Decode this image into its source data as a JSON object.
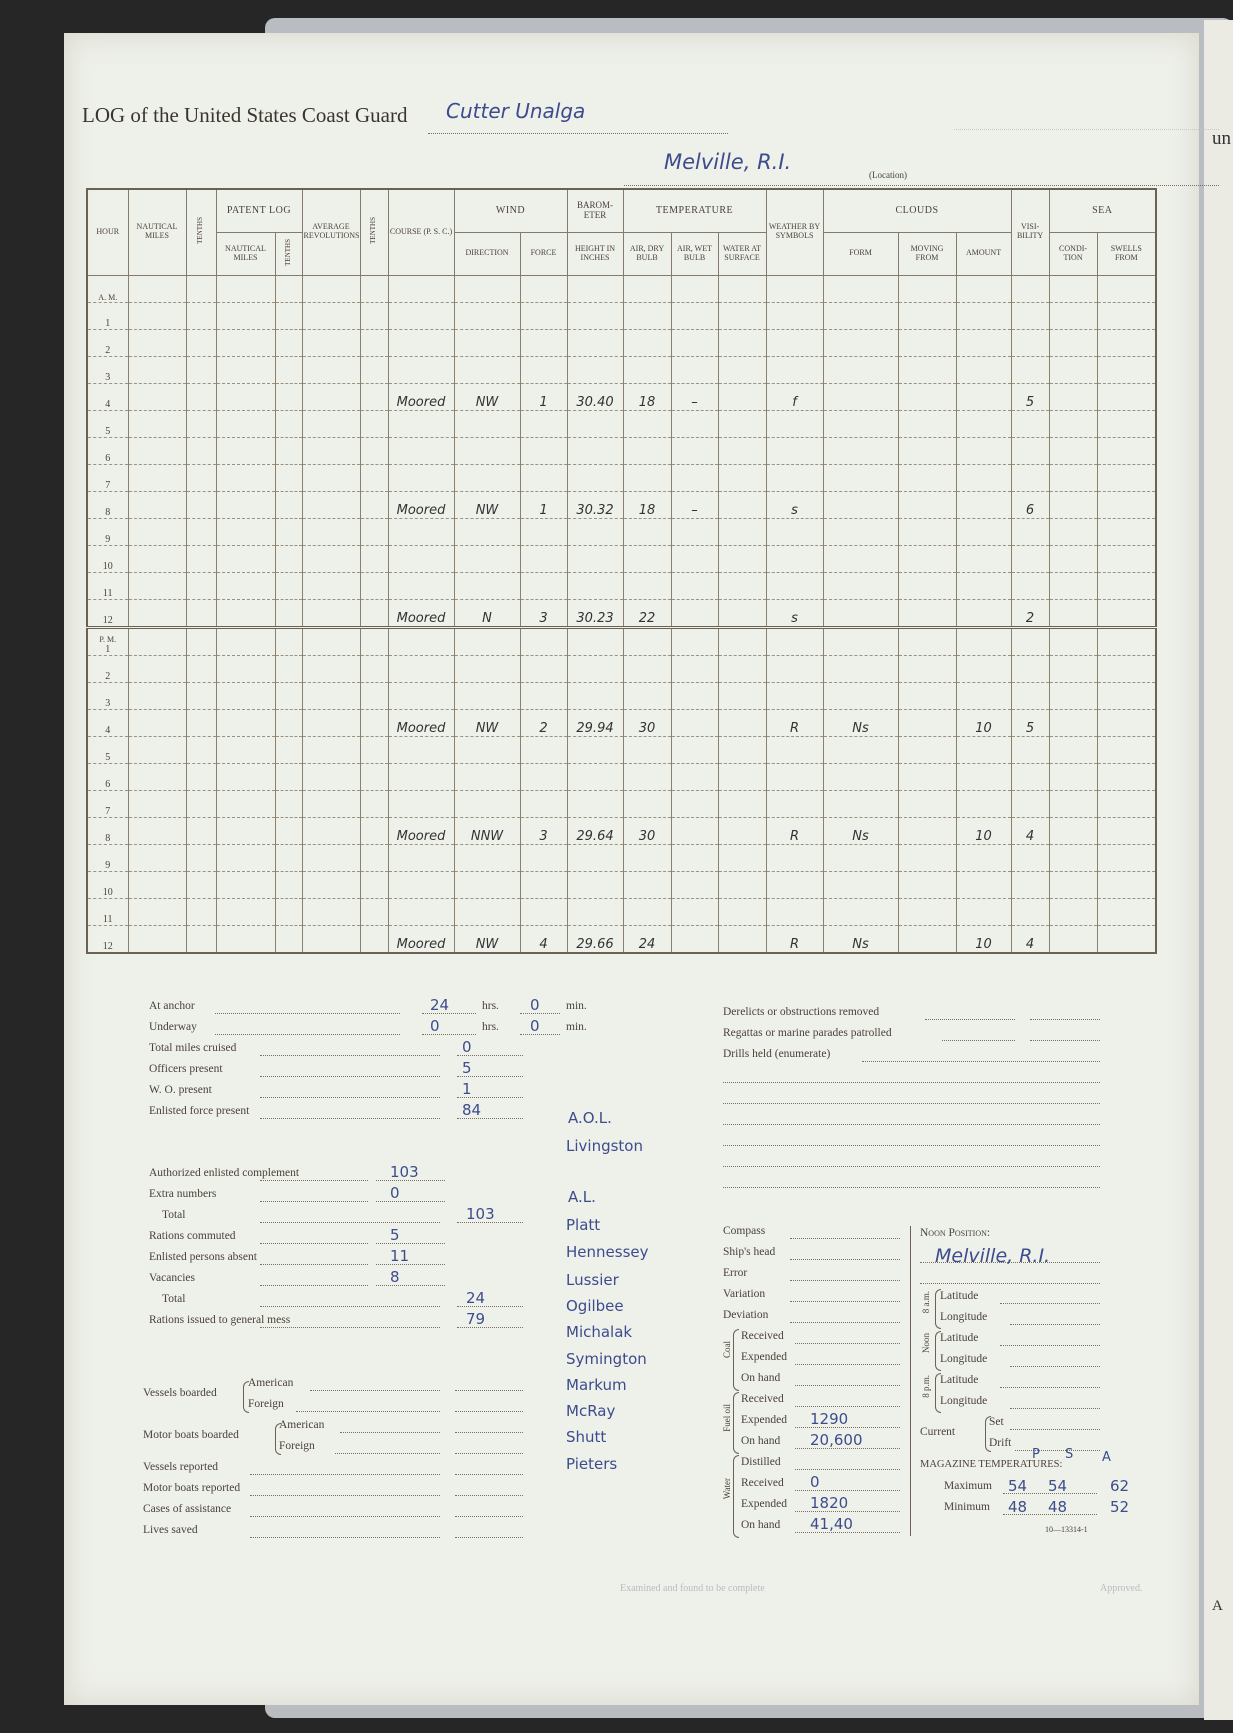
{
  "header": {
    "title": "LOG of the United States Coast Guard",
    "vessel": "Cutter Unalga",
    "location": "Melville, R.I.",
    "location_caption": "(Location)"
  },
  "table": {
    "headers": {
      "hour": "Hour",
      "nautical_miles": "Nautical Miles",
      "tenths": "Tenths",
      "patent_log": "Patent Log",
      "pl_nautical_miles": "Nautical Miles",
      "pl_tenths": "Tenths",
      "avg_revolutions": "Average Revolutions",
      "tenths2": "Tenths",
      "course": "Course (P. S. C.)",
      "wind": "Wind",
      "direction": "Direction",
      "force": "Force",
      "barometer": "Barom-eter",
      "height_in_inches": "Height in Inches",
      "temperature": "Temperature",
      "air_dry_bulb": "Air, Dry Bulb",
      "air_wet_bulb": "Air, Wet Bulb",
      "water_at_surface": "Water at Surface",
      "weather": "Weather by Symbols",
      "clouds": "Clouds",
      "form": "Form",
      "moving_from": "Moving From",
      "amount": "Amount",
      "visibility": "Visi-bility",
      "sea": "Sea",
      "condition": "Condi-tion",
      "swells_from": "Swells From"
    },
    "am_label": "A. M.",
    "pm_label": "P. M.",
    "am_rows": [
      {
        "hour": "1"
      },
      {
        "hour": "2"
      },
      {
        "hour": "3"
      },
      {
        "hour": "4",
        "course": "Moored",
        "direction": "NW",
        "force": "1",
        "barometer": "30.40",
        "dry": "18",
        "wet": "–",
        "weather": "f",
        "visibility": "5"
      },
      {
        "hour": "5"
      },
      {
        "hour": "6"
      },
      {
        "hour": "7"
      },
      {
        "hour": "8",
        "course": "Moored",
        "direction": "NW",
        "force": "1",
        "barometer": "30.32",
        "dry": "18",
        "wet": "–",
        "weather": "s",
        "visibility": "6"
      },
      {
        "hour": "9"
      },
      {
        "hour": "10"
      },
      {
        "hour": "11"
      },
      {
        "hour": "12",
        "course": "Moored",
        "direction": "N",
        "force": "3",
        "barometer": "30.23",
        "dry": "22",
        "weather": "s",
        "visibility": "2"
      }
    ],
    "pm_rows": [
      {
        "hour": "1"
      },
      {
        "hour": "2"
      },
      {
        "hour": "3"
      },
      {
        "hour": "4",
        "course": "Moored",
        "direction": "NW",
        "force": "2",
        "barometer": "29.94",
        "dry": "30",
        "weather": "R",
        "form": "Ns",
        "amount": "10",
        "visibility": "5"
      },
      {
        "hour": "5"
      },
      {
        "hour": "6"
      },
      {
        "hour": "7"
      },
      {
        "hour": "8",
        "course": "Moored",
        "direction": "NNW",
        "force": "3",
        "barometer": "29.64",
        "dry": "30",
        "weather": "R",
        "form": "Ns",
        "amount": "10",
        "visibility": "4"
      },
      {
        "hour": "9"
      },
      {
        "hour": "10"
      },
      {
        "hour": "11"
      },
      {
        "hour": "12",
        "course": "Moored",
        "direction": "NW",
        "force": "4",
        "barometer": "29.66",
        "dry": "24",
        "weather": "R",
        "form": "Ns",
        "amount": "10",
        "visibility": "4"
      }
    ]
  },
  "summary": {
    "hrs": "hrs.",
    "min": "min.",
    "at_anchor": {
      "label": "At anchor",
      "hrs": "24",
      "min": "0"
    },
    "underway": {
      "label": "Underway",
      "hrs": "0",
      "min": "0"
    },
    "total_miles": {
      "label": "Total miles cruised",
      "value": "0"
    },
    "officers": {
      "label": "Officers present",
      "value": "5"
    },
    "wo": {
      "label": "W. O. present",
      "value": "1"
    },
    "enlisted": {
      "label": "Enlisted force present",
      "value": "84"
    },
    "authorized": {
      "label": "Authorized enlisted complement",
      "value": "103"
    },
    "extra": {
      "label": "Extra numbers",
      "value": "0"
    },
    "total1": {
      "label": "Total",
      "value": "103"
    },
    "rations_commuted": {
      "label": "Rations commuted",
      "value": "5"
    },
    "absent": {
      "label": "Enlisted persons absent",
      "value": "11"
    },
    "vacancies": {
      "label": "Vacancies",
      "value": "8"
    },
    "total2": {
      "label": "Total",
      "value": "24"
    },
    "rations_issued": {
      "label": "Rations issued to general mess",
      "value": "79"
    },
    "vessels_boarded": "Vessels boarded",
    "motor_boats_boarded": "Motor boats boarded",
    "american": "American",
    "foreign": "Foreign",
    "vessels_reported": "Vessels reported",
    "motor_boats_reported": "Motor boats reported",
    "cases_of_assistance": "Cases of assistance",
    "lives_saved": "Lives saved"
  },
  "absentees": [
    "A.O.L.",
    "Livingston",
    "A.L.",
    "Platt",
    "Hennessey",
    "Lussier",
    "Ogilbee",
    "Michalak",
    "Symington",
    "Markum",
    "McRay",
    "Shutt",
    "Pieters"
  ],
  "duties": {
    "derelicts": "Derelicts or obstructions removed",
    "regattas": "Regattas or marine parades patrolled",
    "drills": "Drills held (enumerate)"
  },
  "navigation": {
    "compass": "Compass",
    "ships_head": "Ship's head",
    "error": "Error",
    "variation": "Variation",
    "deviation": "Deviation",
    "coal": "Coal",
    "fuel_oil": "Fuel oil",
    "water": "Water",
    "received": "Received",
    "expended": "Expended",
    "on_hand": "On hand",
    "distilled": "Distilled",
    "fuel_expended": "1290",
    "fuel_on_hand": "20,600",
    "water_received": "0",
    "water_expended": "1820",
    "water_on_hand": "41,40"
  },
  "position": {
    "noon_position_label": "Noon Position:",
    "noon_position": "Melville, R.I.",
    "am8": "8 a.m.",
    "noon": "Noon",
    "pm8": "8 p.m.",
    "latitude": "Latitude",
    "longitude": "Longitude",
    "current": "Current",
    "set": "Set",
    "drift": "Drift",
    "magazine_label": "Magazine Temperatures:",
    "columns": [
      "P",
      "S",
      "A"
    ],
    "maximum_label": "Maximum",
    "maximum": [
      "54",
      "54",
      "62"
    ],
    "minimum_label": "Minimum",
    "minimum": [
      "48",
      "48",
      "52"
    ],
    "form_number": "10—13314-1"
  },
  "footer": {
    "approved": "Approved.",
    "examined": "Examined and found to be complete"
  },
  "next_page": {
    "fragment": "un",
    "letter": "A"
  }
}
